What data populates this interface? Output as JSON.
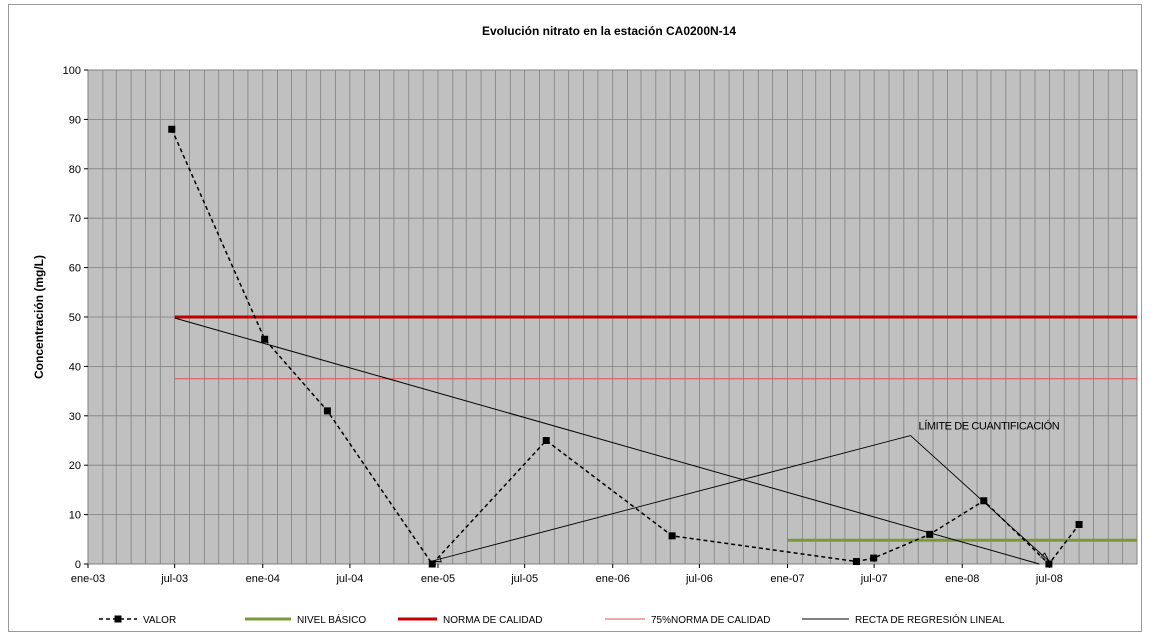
{
  "chart_data": {
    "type": "line",
    "title": "Evolución nitrato en la estación CA0200N-14",
    "xlabel": "",
    "ylabel": "Concentración (mg/L)",
    "ylim": [
      0,
      100
    ],
    "yticks": [
      0,
      10,
      20,
      30,
      40,
      50,
      60,
      70,
      80,
      90,
      100
    ],
    "xlim": [
      "2003-01-01",
      "2008-12-31"
    ],
    "xtick_labels": [
      "ene-03",
      "jul-03",
      "ene-04",
      "jul-04",
      "ene-05",
      "jul-05",
      "ene-06",
      "jul-06",
      "ene-07",
      "jul-07",
      "ene-08",
      "jul-08"
    ],
    "xtick_dates": [
      "2003-01-01",
      "2003-07-01",
      "2004-01-01",
      "2004-07-01",
      "2005-01-01",
      "2005-07-01",
      "2006-01-01",
      "2006-07-01",
      "2007-01-01",
      "2007-07-01",
      "2008-01-01",
      "2008-07-01"
    ],
    "grid": true,
    "legend_position": "bottom",
    "series": [
      {
        "name": "VALOR",
        "style": "dashed-markers",
        "color": "#000000",
        "x": [
          "2003-06-25",
          "2004-01-05",
          "2004-05-15",
          "2004-12-20",
          "2005-08-15",
          "2006-05-05",
          "2007-05-25",
          "2007-06-30",
          "2007-10-25",
          "2008-02-15",
          "2008-06-30",
          "2008-09-01"
        ],
        "values": [
          88,
          45.5,
          31,
          0,
          25,
          5.7,
          0.5,
          1.2,
          6,
          12.8,
          0,
          8
        ]
      },
      {
        "name": "NIVEL BÁSICO",
        "style": "thick",
        "color": "#7a9a3a",
        "x": [
          "2007-01-01",
          "2008-12-31"
        ],
        "values": [
          4.8,
          4.8
        ]
      },
      {
        "name": "NORMA DE CALIDAD",
        "style": "thick",
        "color": "#c00000",
        "x": [
          "2003-07-01",
          "2008-12-31"
        ],
        "values": [
          50,
          50
        ]
      },
      {
        "name": "75%NORMA DE CALIDAD",
        "style": "thin",
        "color": "#e05050",
        "x": [
          "2003-07-01",
          "2008-12-31"
        ],
        "values": [
          37.5,
          37.5
        ]
      },
      {
        "name": "RECTA DE REGRESIÓN LINEAL",
        "style": "thin",
        "color": "#000000",
        "x": [
          "2003-07-01",
          "2008-06-10"
        ],
        "values": [
          49.8,
          0
        ]
      }
    ],
    "annotation": {
      "text": "LÍMITE DE CUANTIFICACIÓN",
      "anchor_x": "2007-09-15",
      "anchor_y": 26,
      "targets": [
        {
          "x": "2004-12-20",
          "y": 0
        },
        {
          "x": "2008-06-30",
          "y": 0
        }
      ]
    }
  }
}
